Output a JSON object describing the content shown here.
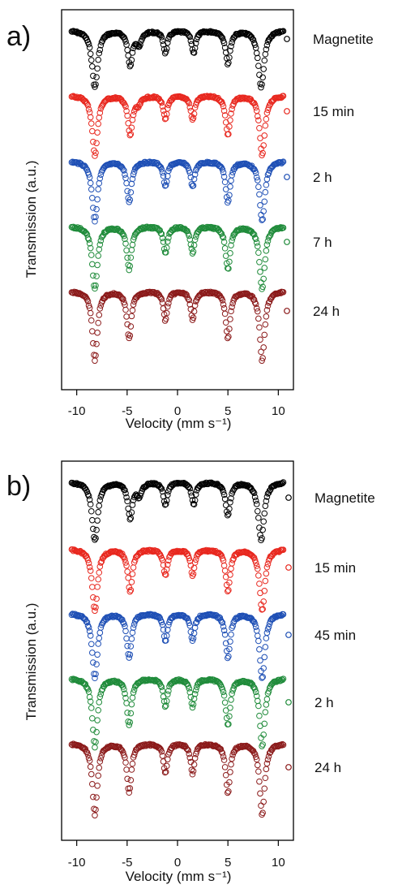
{
  "chart_data": [
    {
      "type": "scatter",
      "panel_label": "a)",
      "xlabel": "Velocity (mm s⁻¹)",
      "ylabel": "Transmission (a.u.)",
      "xlim": [
        -11.5,
        11.5
      ],
      "x_ticks": [
        -10,
        -5,
        0,
        5,
        10
      ],
      "x_tick_labels": [
        "-10",
        "-5",
        "0",
        "5",
        "10"
      ],
      "x_range_data": [
        -10.5,
        10.5
      ],
      "series": [
        {
          "name": "Magnetite",
          "color": "#000000",
          "kind": "magnetite",
          "peaks": [
            {
              "pos": -8.2,
              "depth": 0.9,
              "w": 0.35
            },
            {
              "pos": -4.7,
              "depth": 0.55,
              "w": 0.28
            },
            {
              "pos": -3.8,
              "depth": 0.2,
              "w": 0.3
            },
            {
              "pos": -1.2,
              "depth": 0.35,
              "w": 0.25
            },
            {
              "pos": 1.6,
              "depth": 0.35,
              "w": 0.25
            },
            {
              "pos": 5.0,
              "depth": 0.52,
              "w": 0.28
            },
            {
              "pos": 8.3,
              "depth": 0.9,
              "w": 0.35
            }
          ]
        },
        {
          "name": "15 min",
          "color": "#e8271e",
          "kind": "sextet",
          "peaks": [
            {
              "pos": -8.2,
              "depth": 0.95,
              "w": 0.32
            },
            {
              "pos": -4.7,
              "depth": 0.62,
              "w": 0.28
            },
            {
              "pos": -3.9,
              "depth": 0.12,
              "w": 0.3
            },
            {
              "pos": -1.2,
              "depth": 0.38,
              "w": 0.25
            },
            {
              "pos": 1.5,
              "depth": 0.38,
              "w": 0.25
            },
            {
              "pos": 5.0,
              "depth": 0.62,
              "w": 0.28
            },
            {
              "pos": 8.4,
              "depth": 0.95,
              "w": 0.32
            }
          ]
        },
        {
          "name": "2 h",
          "color": "#1e4fb5",
          "kind": "sextet",
          "peaks": [
            {
              "pos": -8.2,
              "depth": 0.95,
              "w": 0.32
            },
            {
              "pos": -4.8,
              "depth": 0.65,
              "w": 0.28
            },
            {
              "pos": -1.2,
              "depth": 0.4,
              "w": 0.25
            },
            {
              "pos": 1.5,
              "depth": 0.4,
              "w": 0.25
            },
            {
              "pos": 5.0,
              "depth": 0.65,
              "w": 0.28
            },
            {
              "pos": 8.4,
              "depth": 0.95,
              "w": 0.32
            }
          ]
        },
        {
          "name": "7 h",
          "color": "#1f8b3a",
          "kind": "sextet",
          "peaks": [
            {
              "pos": -8.2,
              "depth": 1.0,
              "w": 0.32
            },
            {
              "pos": -4.8,
              "depth": 0.68,
              "w": 0.28
            },
            {
              "pos": -1.2,
              "depth": 0.42,
              "w": 0.25
            },
            {
              "pos": 1.5,
              "depth": 0.42,
              "w": 0.25
            },
            {
              "pos": 5.0,
              "depth": 0.68,
              "w": 0.28
            },
            {
              "pos": 8.4,
              "depth": 1.0,
              "w": 0.32
            }
          ]
        },
        {
          "name": "24 h",
          "color": "#8b1a1a",
          "kind": "sextet",
          "peaks": [
            {
              "pos": -8.2,
              "depth": 1.1,
              "w": 0.3
            },
            {
              "pos": -4.8,
              "depth": 0.75,
              "w": 0.27
            },
            {
              "pos": -1.2,
              "depth": 0.46,
              "w": 0.24
            },
            {
              "pos": 1.5,
              "depth": 0.46,
              "w": 0.24
            },
            {
              "pos": 5.0,
              "depth": 0.75,
              "w": 0.27
            },
            {
              "pos": 8.4,
              "depth": 1.1,
              "w": 0.3
            }
          ]
        }
      ]
    },
    {
      "type": "scatter",
      "panel_label": "b)",
      "xlabel": "Velocity (mm s⁻¹)",
      "ylabel": "Transmission (a.u.)",
      "xlim": [
        -11.5,
        11.5
      ],
      "x_ticks": [
        -10,
        -5,
        0,
        5,
        10
      ],
      "x_tick_labels": [
        "-10",
        "-5",
        "0",
        "5",
        "10"
      ],
      "x_range_data": [
        -10.5,
        10.5
      ],
      "series": [
        {
          "name": "Magnetite",
          "color": "#000000",
          "kind": "magnetite",
          "peaks": [
            {
              "pos": -8.2,
              "depth": 0.9,
              "w": 0.35
            },
            {
              "pos": -4.7,
              "depth": 0.55,
              "w": 0.28
            },
            {
              "pos": -3.8,
              "depth": 0.2,
              "w": 0.3
            },
            {
              "pos": -1.2,
              "depth": 0.35,
              "w": 0.25
            },
            {
              "pos": 1.6,
              "depth": 0.35,
              "w": 0.25
            },
            {
              "pos": 5.0,
              "depth": 0.52,
              "w": 0.28
            },
            {
              "pos": 8.3,
              "depth": 0.9,
              "w": 0.35
            }
          ]
        },
        {
          "name": "15 min",
          "color": "#e8271e",
          "kind": "sextet",
          "peaks": [
            {
              "pos": -8.2,
              "depth": 0.95,
              "w": 0.32
            },
            {
              "pos": -4.7,
              "depth": 0.65,
              "w": 0.28
            },
            {
              "pos": -1.2,
              "depth": 0.4,
              "w": 0.25
            },
            {
              "pos": 1.5,
              "depth": 0.4,
              "w": 0.25
            },
            {
              "pos": 5.0,
              "depth": 0.65,
              "w": 0.28
            },
            {
              "pos": 8.4,
              "depth": 0.95,
              "w": 0.32
            }
          ]
        },
        {
          "name": "45 min",
          "color": "#1e4fb5",
          "kind": "sextet",
          "peaks": [
            {
              "pos": -8.2,
              "depth": 1.0,
              "w": 0.32
            },
            {
              "pos": -4.8,
              "depth": 0.68,
              "w": 0.28
            },
            {
              "pos": -1.2,
              "depth": 0.42,
              "w": 0.25
            },
            {
              "pos": 1.5,
              "depth": 0.42,
              "w": 0.25
            },
            {
              "pos": 5.0,
              "depth": 0.68,
              "w": 0.28
            },
            {
              "pos": 8.4,
              "depth": 1.0,
              "w": 0.32
            }
          ]
        },
        {
          "name": "2 h",
          "color": "#1f8b3a",
          "kind": "sextet",
          "peaks": [
            {
              "pos": -8.2,
              "depth": 1.05,
              "w": 0.31
            },
            {
              "pos": -4.8,
              "depth": 0.72,
              "w": 0.28
            },
            {
              "pos": -1.2,
              "depth": 0.44,
              "w": 0.25
            },
            {
              "pos": 1.5,
              "depth": 0.44,
              "w": 0.25
            },
            {
              "pos": 5.0,
              "depth": 0.72,
              "w": 0.28
            },
            {
              "pos": 8.4,
              "depth": 1.05,
              "w": 0.31
            }
          ]
        },
        {
          "name": "24 h",
          "color": "#8b1a1a",
          "kind": "sextet",
          "peaks": [
            {
              "pos": -8.2,
              "depth": 1.1,
              "w": 0.3
            },
            {
              "pos": -4.8,
              "depth": 0.76,
              "w": 0.27
            },
            {
              "pos": -1.2,
              "depth": 0.46,
              "w": 0.24
            },
            {
              "pos": 1.5,
              "depth": 0.46,
              "w": 0.24
            },
            {
              "pos": 5.0,
              "depth": 0.76,
              "w": 0.27
            },
            {
              "pos": 8.4,
              "depth": 1.1,
              "w": 0.3
            }
          ]
        }
      ]
    }
  ]
}
